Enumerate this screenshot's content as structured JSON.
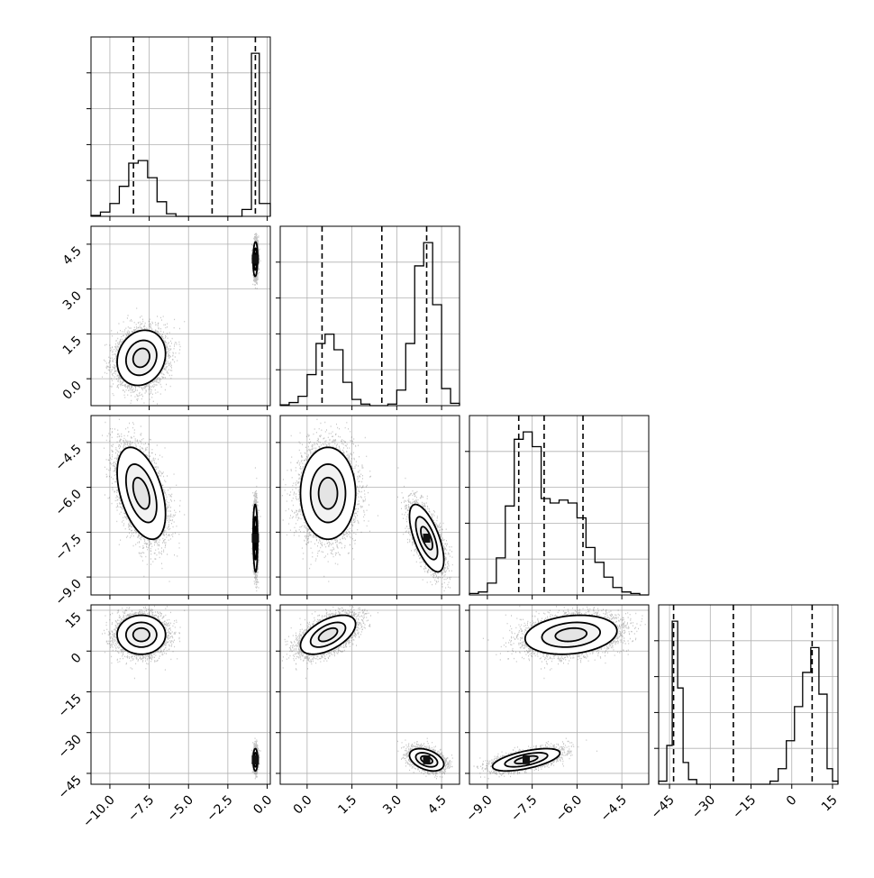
{
  "chart_data": {
    "type": "corner",
    "params": [
      {
        "range": [
          -11.2,
          0.2
        ],
        "ticks": [
          -10.0,
          -7.5,
          -5.0,
          -2.5,
          0.0
        ],
        "tick_labels": [
          "−10.0",
          "−7.5",
          "−5.0",
          "−2.5",
          "0.0"
        ]
      },
      {
        "range": [
          -0.9,
          5.1
        ],
        "ticks": [
          0.0,
          1.5,
          3.0,
          4.5
        ],
        "tick_labels": [
          "0.0",
          "1.5",
          "3.0",
          "4.5"
        ]
      },
      {
        "range": [
          -9.6,
          -3.6
        ],
        "ticks": [
          -9.0,
          -7.5,
          -6.0,
          -4.5
        ],
        "tick_labels": [
          "−9.0",
          "−7.5",
          "−6.0",
          "−4.5"
        ]
      },
      {
        "range": [
          -49,
          17
        ],
        "ticks": [
          -45,
          -30,
          -15,
          0,
          15
        ],
        "tick_labels": [
          "−45",
          "−30",
          "−15",
          "0",
          "15"
        ]
      }
    ],
    "quantiles": [
      [
        -8.5,
        -3.5,
        -0.75
      ],
      [
        0.5,
        2.5,
        4.0
      ],
      [
        -7.95,
        -7.1,
        -5.8
      ],
      [
        -43.5,
        -21.5,
        7.5
      ]
    ],
    "diagonal_hist": [
      {
        "edges": [
          -11.2,
          -10.6,
          -10.0,
          -9.4,
          -8.8,
          -8.2,
          -7.6,
          -7.0,
          -6.4,
          -5.8,
          -5.2,
          -4.6,
          -4.0,
          -3.4,
          -2.8,
          -2.2,
          -1.6,
          -1.0,
          -0.5,
          0.2
        ],
        "counts": [
          1,
          5,
          15,
          35,
          62,
          65,
          45,
          17,
          3,
          0,
          0,
          0,
          0,
          0,
          0,
          0,
          8,
          190,
          15
        ]
      },
      {
        "edges": [
          -0.9,
          -0.6,
          -0.3,
          0.0,
          0.3,
          0.6,
          0.9,
          1.2,
          1.5,
          1.8,
          2.1,
          2.4,
          2.7,
          3.0,
          3.3,
          3.6,
          3.9,
          4.2,
          4.5,
          4.8,
          5.1
        ],
        "counts": [
          1,
          4,
          12,
          40,
          80,
          92,
          72,
          30,
          8,
          2,
          0,
          0,
          2,
          20,
          80,
          180,
          210,
          130,
          22,
          3
        ]
      },
      {
        "edges": [
          -9.6,
          -9.3,
          -9.0,
          -8.7,
          -8.4,
          -8.1,
          -7.8,
          -7.5,
          -7.2,
          -6.9,
          -6.6,
          -6.3,
          -6.0,
          -5.7,
          -5.4,
          -5.1,
          -4.8,
          -4.5,
          -4.2,
          -3.9,
          -3.6
        ],
        "counts": [
          1,
          2,
          8,
          25,
          60,
          105,
          110,
          100,
          65,
          62,
          64,
          62,
          52,
          32,
          22,
          12,
          5,
          2,
          1,
          0
        ]
      },
      {
        "edges": [
          -49,
          -46,
          -44,
          -42,
          -40,
          -38,
          -35,
          -32,
          -29,
          -26,
          -23,
          -20,
          -17,
          -14,
          -11,
          -8,
          -5,
          -2,
          1,
          4,
          7,
          10,
          13,
          15,
          17
        ],
        "counts": [
          2,
          25,
          105,
          62,
          14,
          3,
          0,
          0,
          0,
          0,
          0,
          0,
          0,
          0,
          0,
          2,
          10,
          28,
          50,
          72,
          88,
          58,
          10,
          2
        ]
      }
    ],
    "modes": [
      {
        "mean": [
          -8.0,
          0.7,
          -6.2,
          6.0
        ],
        "std": [
          0.75,
          0.45,
          0.75,
          3.5
        ],
        "corr": [
          [
            1,
            0.15,
            -0.45,
            0.0
          ],
          [
            0.15,
            1,
            0.0,
            0.55
          ],
          [
            -0.45,
            0.0,
            1,
            0.2
          ],
          [
            0.0,
            0.55,
            0.2,
            1
          ]
        ]
      },
      {
        "mean": [
          -0.75,
          4.0,
          -7.7,
          -40.0
        ],
        "std": [
          0.07,
          0.28,
          0.55,
          2.0
        ],
        "corr": [
          [
            1,
            0.1,
            -0.1,
            0.0
          ],
          [
            0.1,
            1,
            -0.65,
            -0.4
          ],
          [
            -0.1,
            -0.65,
            1,
            0.6
          ],
          [
            0.0,
            -0.4,
            0.6,
            1
          ]
        ]
      }
    ]
  }
}
